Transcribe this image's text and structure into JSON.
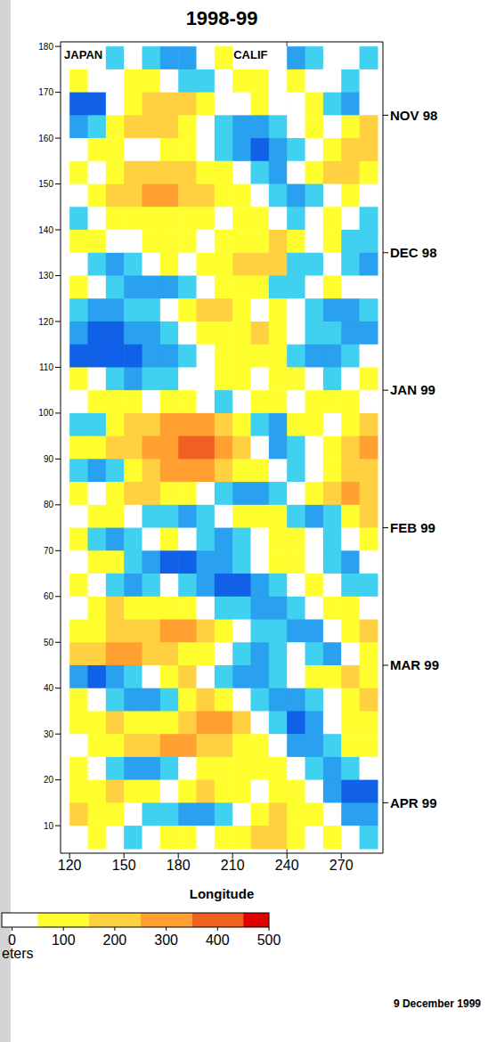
{
  "chart_data": {
    "type": "heatmap",
    "title": "1998-99",
    "xlabel": "Longitude",
    "xlim": [
      115,
      293
    ],
    "xticks": [
      120,
      150,
      180,
      210,
      240,
      270
    ],
    "ylim": [
      4,
      181
    ],
    "yticks": [
      10,
      20,
      30,
      40,
      50,
      60,
      70,
      80,
      90,
      100,
      110,
      120,
      130,
      140,
      150,
      160,
      170,
      180
    ],
    "y2lim": [
      4,
      181
    ],
    "y2ticks": [
      {
        "value": 165,
        "label": "NOV 98"
      },
      {
        "value": 135,
        "label": "DEC 98"
      },
      {
        "value": 105,
        "label": "JAN 99"
      },
      {
        "value": 75,
        "label": "FEB 99"
      },
      {
        "value": 45,
        "label": "MAR 99"
      },
      {
        "value": 15,
        "label": "APR 99"
      }
    ],
    "annotations": [
      {
        "text": "JAPAN",
        "x": 117,
        "y": 178
      },
      {
        "text": "CALIF",
        "x": 210.5,
        "y": 178
      }
    ],
    "reference_lines": [
      {
        "x": 240
      }
    ],
    "footnote": "9 December 1999",
    "colorbar": {
      "range": [
        -20,
        500
      ],
      "ticks": [
        0,
        100,
        200,
        300,
        400,
        500
      ],
      "label": "eters",
      "bounds": [
        -500,
        -450,
        -350,
        -250,
        -150,
        -50,
        50,
        150,
        250,
        350,
        450,
        500
      ],
      "colors": [
        "#001a80",
        "#0030c8",
        "#1060e8",
        "#2aa0f0",
        "#40d0f0",
        "#ffffff",
        "#ffff30",
        "#ffd040",
        "#ffa030",
        "#f06020",
        "#e00000"
      ]
    },
    "cells": {
      "x": [
        125,
        135,
        145,
        155,
        165,
        175,
        185,
        195,
        205,
        215,
        225,
        235,
        245,
        255,
        265,
        275,
        285
      ],
      "y": [
        177.5,
        172.5,
        167.5,
        162.5,
        157.5,
        152.5,
        147.5,
        142.5,
        137.5,
        132.5,
        127.5,
        122.5,
        117.5,
        112.5,
        107.5,
        102.5,
        97.5,
        92.5,
        87.5,
        82.5,
        77.5,
        72.5,
        67.5,
        62.5,
        57.5,
        52.5,
        47.5,
        42.5,
        37.5,
        32.5,
        27.5,
        22.5,
        17.5,
        12.5,
        7.5
      ],
      "values": [
        [
          0,
          0,
          -100,
          0,
          -100,
          -200,
          -200,
          0,
          100,
          0,
          0,
          0,
          -200,
          -100,
          0,
          0,
          -100
        ],
        [
          100,
          0,
          0,
          100,
          100,
          0,
          -100,
          -100,
          0,
          100,
          100,
          0,
          100,
          0,
          0,
          -100,
          0
        ],
        [
          -300,
          -300,
          0,
          100,
          200,
          200,
          200,
          100,
          0,
          0,
          100,
          0,
          0,
          100,
          -100,
          -200,
          0
        ],
        [
          -200,
          -100,
          100,
          200,
          200,
          200,
          100,
          0,
          -100,
          -200,
          -200,
          -100,
          0,
          100,
          0,
          100,
          200
        ],
        [
          0,
          100,
          100,
          0,
          0,
          100,
          100,
          0,
          -100,
          -200,
          -300,
          -200,
          -100,
          0,
          100,
          200,
          200
        ],
        [
          100,
          0,
          100,
          200,
          200,
          200,
          200,
          100,
          100,
          0,
          -100,
          -200,
          0,
          100,
          200,
          200,
          100
        ],
        [
          0,
          100,
          200,
          200,
          300,
          300,
          200,
          200,
          100,
          100,
          0,
          -100,
          -200,
          -100,
          0,
          100,
          0
        ],
        [
          -100,
          0,
          100,
          100,
          100,
          100,
          100,
          100,
          0,
          100,
          100,
          0,
          -100,
          0,
          100,
          0,
          -100
        ],
        [
          100,
          100,
          0,
          0,
          100,
          100,
          100,
          0,
          100,
          100,
          100,
          200,
          100,
          0,
          100,
          -100,
          -100
        ],
        [
          0,
          -100,
          -200,
          -100,
          0,
          100,
          0,
          100,
          100,
          200,
          200,
          200,
          -100,
          -100,
          0,
          -100,
          -200
        ],
        [
          100,
          0,
          -100,
          -200,
          -200,
          -200,
          -100,
          0,
          100,
          100,
          100,
          -100,
          -100,
          0,
          100,
          0,
          0
        ],
        [
          -100,
          -200,
          -200,
          -100,
          -100,
          0,
          100,
          200,
          200,
          100,
          0,
          100,
          0,
          -100,
          -200,
          -200,
          -100
        ],
        [
          -200,
          -300,
          -300,
          -200,
          -200,
          -100,
          0,
          100,
          100,
          100,
          200,
          100,
          0,
          -100,
          -100,
          -200,
          -200
        ],
        [
          -300,
          -300,
          -300,
          -300,
          -200,
          -200,
          -100,
          0,
          100,
          100,
          100,
          100,
          -100,
          -200,
          -200,
          -100,
          0
        ],
        [
          100,
          0,
          -100,
          -200,
          -100,
          -100,
          0,
          0,
          100,
          100,
          0,
          100,
          100,
          0,
          -100,
          0,
          100
        ],
        [
          0,
          100,
          100,
          100,
          0,
          100,
          100,
          0,
          -100,
          0,
          100,
          100,
          0,
          100,
          100,
          100,
          0
        ],
        [
          -100,
          -100,
          100,
          200,
          200,
          300,
          300,
          300,
          200,
          100,
          -100,
          -200,
          100,
          100,
          0,
          100,
          200
        ],
        [
          100,
          100,
          200,
          200,
          300,
          300,
          400,
          400,
          300,
          200,
          0,
          -200,
          -100,
          0,
          100,
          200,
          300
        ],
        [
          -100,
          -200,
          -100,
          100,
          200,
          300,
          300,
          300,
          200,
          100,
          100,
          0,
          -100,
          0,
          100,
          200,
          200
        ],
        [
          100,
          0,
          100,
          200,
          200,
          100,
          100,
          0,
          -100,
          -200,
          -200,
          -100,
          0,
          100,
          200,
          300,
          200
        ],
        [
          0,
          100,
          100,
          0,
          -100,
          -100,
          -200,
          -100,
          0,
          100,
          100,
          100,
          -100,
          -200,
          -100,
          100,
          200
        ],
        [
          100,
          -100,
          -200,
          -100,
          0,
          100,
          0,
          -100,
          -200,
          -100,
          0,
          100,
          100,
          0,
          -100,
          0,
          100
        ],
        [
          0,
          100,
          100,
          -100,
          -200,
          -300,
          -300,
          -200,
          -200,
          -100,
          0,
          100,
          100,
          0,
          -100,
          -200,
          0
        ],
        [
          100,
          0,
          -100,
          -200,
          -100,
          0,
          -100,
          -200,
          -300,
          -300,
          -200,
          -100,
          0,
          100,
          0,
          -100,
          -100
        ],
        [
          0,
          100,
          200,
          100,
          100,
          100,
          100,
          0,
          -100,
          -100,
          -200,
          -200,
          -100,
          0,
          100,
          100,
          0
        ],
        [
          100,
          100,
          200,
          200,
          200,
          300,
          300,
          200,
          100,
          0,
          -100,
          -100,
          -200,
          -200,
          0,
          100,
          200
        ],
        [
          200,
          200,
          300,
          300,
          200,
          200,
          100,
          100,
          0,
          -100,
          -200,
          -100,
          0,
          -100,
          -200,
          0,
          100
        ],
        [
          -200,
          -300,
          -200,
          -100,
          0,
          100,
          200,
          0,
          -100,
          -200,
          -200,
          -100,
          0,
          100,
          100,
          200,
          100
        ],
        [
          100,
          0,
          -100,
          -200,
          -200,
          -100,
          100,
          200,
          100,
          0,
          -100,
          -200,
          -200,
          -100,
          0,
          100,
          200
        ],
        [
          100,
          100,
          200,
          100,
          100,
          100,
          200,
          300,
          300,
          200,
          0,
          -100,
          -300,
          -200,
          0,
          100,
          100
        ],
        [
          0,
          100,
          100,
          200,
          200,
          300,
          300,
          200,
          200,
          100,
          100,
          0,
          -200,
          -200,
          -100,
          100,
          100
        ],
        [
          100,
          0,
          -100,
          -200,
          -200,
          -100,
          0,
          100,
          100,
          100,
          100,
          100,
          0,
          -100,
          -200,
          -100,
          0
        ],
        [
          100,
          100,
          200,
          100,
          100,
          0,
          100,
          200,
          100,
          100,
          0,
          100,
          100,
          0,
          -200,
          -300,
          -300
        ],
        [
          200,
          100,
          100,
          0,
          -100,
          -100,
          -200,
          -200,
          -100,
          0,
          100,
          200,
          100,
          100,
          0,
          -200,
          -200
        ],
        [
          0,
          100,
          0,
          -100,
          0,
          100,
          100,
          0,
          100,
          100,
          200,
          200,
          100,
          0,
          100,
          0,
          -100
        ]
      ]
    }
  }
}
